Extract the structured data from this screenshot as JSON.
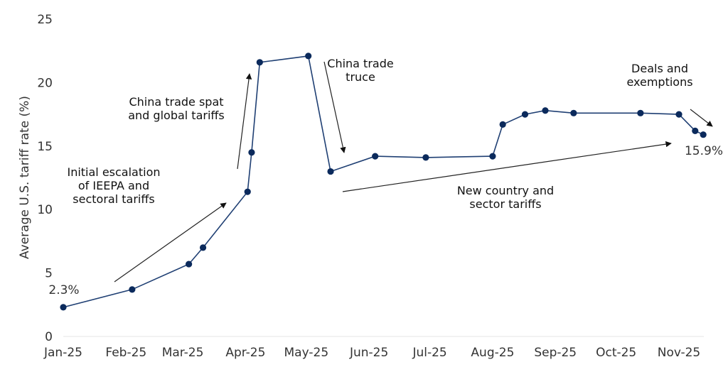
{
  "chart_data": {
    "type": "line",
    "title": "",
    "xlabel": "",
    "ylabel": "Average U.S. tariff rate (%)",
    "ylim": [
      0,
      25
    ],
    "yticks": [
      0,
      5,
      10,
      15,
      20,
      25
    ],
    "xticks": [
      "Jan-25",
      "Feb-25",
      "Mar-25",
      "Apr-25",
      "May-25",
      "Jun-25",
      "Jul-25",
      "Aug-25",
      "Sep-25",
      "Oct-25",
      "Nov-25"
    ],
    "grid": false,
    "line_color": "#1f3f73",
    "marker_color": "#0b2a5c",
    "series": [
      {
        "x": [
          "2025-01-01",
          "2025-02-04",
          "2025-03-04",
          "2025-03-11",
          "2025-04-02",
          "2025-04-04",
          "2025-04-08",
          "2025-05-02",
          "2025-05-13",
          "2025-06-04",
          "2025-06-29",
          "2025-08-01",
          "2025-08-06",
          "2025-08-17",
          "2025-08-27",
          "2025-09-10",
          "2025-10-13",
          "2025-11-01",
          "2025-11-09",
          "2025-11-13"
        ],
        "y": [
          2.3,
          3.7,
          5.7,
          7.0,
          11.4,
          14.5,
          21.6,
          22.1,
          13.0,
          14.2,
          14.1,
          14.2,
          16.7,
          17.5,
          17.8,
          17.6,
          17.6,
          17.5,
          16.2,
          15.9
        ]
      }
    ],
    "data_labels": {
      "start": "2.3%",
      "end": "15.9%"
    },
    "annotations": [
      {
        "lines": [
          "Initial escalation",
          "of IEEPA and",
          "sectoral tariffs"
        ]
      },
      {
        "lines": [
          "China trade spat",
          "and global tariffs"
        ]
      },
      {
        "lines": [
          "China trade",
          "truce"
        ]
      },
      {
        "lines": [
          "New country and",
          "sector tariffs"
        ]
      },
      {
        "lines": [
          "Deals and",
          "exemptions"
        ]
      }
    ]
  }
}
